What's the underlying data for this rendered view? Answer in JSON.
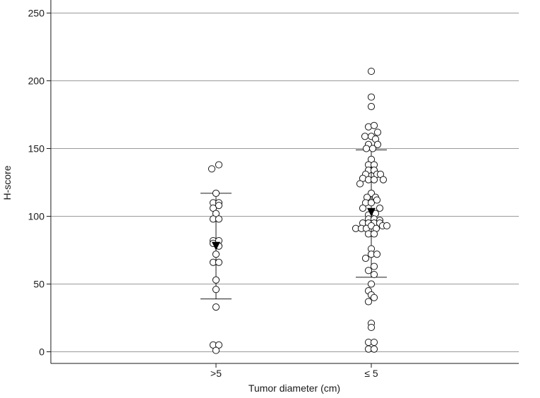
{
  "chart_data": {
    "type": "scatter",
    "title": "",
    "xlabel": "Tumor diameter (cm)",
    "ylabel": "H-score",
    "categories": [
      ">5",
      "≤ 5"
    ],
    "yticks": [
      0,
      50,
      100,
      150,
      200,
      250
    ],
    "ylim": [
      -10,
      250
    ],
    "grid": true,
    "legend": "none",
    "groups": [
      {
        "category": ">5",
        "mean": 78,
        "sd_upper": 117,
        "sd_lower": 39,
        "points": [
          [
            -0.06,
            135
          ],
          [
            0.04,
            138
          ],
          [
            0.0,
            117
          ],
          [
            -0.04,
            110
          ],
          [
            0.04,
            110
          ],
          [
            -0.04,
            106
          ],
          [
            0.04,
            108
          ],
          [
            0.0,
            102
          ],
          [
            -0.04,
            98
          ],
          [
            0.04,
            98
          ],
          [
            -0.04,
            82
          ],
          [
            0.04,
            82
          ],
          [
            -0.04,
            80
          ],
          [
            0.04,
            78
          ],
          [
            0.0,
            72
          ],
          [
            -0.04,
            66
          ],
          [
            0.04,
            66
          ],
          [
            0.0,
            53
          ],
          [
            0.0,
            46
          ],
          [
            0.0,
            33
          ],
          [
            -0.04,
            5
          ],
          [
            0.04,
            5
          ],
          [
            0.0,
            1
          ]
        ]
      },
      {
        "category": "≤ 5",
        "mean": 103,
        "sd_upper": 149,
        "sd_lower": 55,
        "points": [
          [
            0.0,
            207
          ],
          [
            0.0,
            188
          ],
          [
            0.0,
            181
          ],
          [
            -0.04,
            166
          ],
          [
            0.04,
            167
          ],
          [
            0.09,
            162
          ],
          [
            -0.09,
            159
          ],
          [
            0.0,
            159
          ],
          [
            0.06,
            157
          ],
          [
            -0.04,
            153
          ],
          [
            0.09,
            153
          ],
          [
            -0.07,
            150
          ],
          [
            0.02,
            150
          ],
          [
            0.0,
            142
          ],
          [
            -0.04,
            138
          ],
          [
            0.04,
            138
          ],
          [
            -0.04,
            134
          ],
          [
            0.04,
            134
          ],
          [
            -0.08,
            131
          ],
          [
            0.08,
            131
          ],
          [
            0.13,
            131
          ],
          [
            -0.12,
            128
          ],
          [
            0.17,
            127
          ],
          [
            -0.04,
            127
          ],
          [
            0.04,
            127
          ],
          [
            -0.16,
            124
          ],
          [
            0.0,
            117
          ],
          [
            -0.06,
            114
          ],
          [
            0.06,
            114
          ],
          [
            -0.08,
            110
          ],
          [
            0.0,
            110
          ],
          [
            0.08,
            112
          ],
          [
            -0.12,
            106
          ],
          [
            0.12,
            106
          ],
          [
            -0.04,
            101
          ],
          [
            0.06,
            102
          ],
          [
            -0.04,
            98
          ],
          [
            0.04,
            98
          ],
          [
            0.12,
            97
          ],
          [
            -0.12,
            95
          ],
          [
            -0.04,
            95
          ],
          [
            0.04,
            95
          ],
          [
            0.12,
            95
          ],
          [
            -0.22,
            91
          ],
          [
            -0.14,
            91
          ],
          [
            -0.07,
            91
          ],
          [
            0.0,
            93
          ],
          [
            0.07,
            91
          ],
          [
            0.16,
            93
          ],
          [
            0.22,
            93
          ],
          [
            -0.04,
            87
          ],
          [
            0.04,
            87
          ],
          [
            0.0,
            76
          ],
          [
            0.0,
            72
          ],
          [
            -0.08,
            69
          ],
          [
            0.08,
            72
          ],
          [
            0.04,
            63
          ],
          [
            -0.04,
            60
          ],
          [
            0.04,
            57
          ],
          [
            0.0,
            50
          ],
          [
            -0.04,
            45
          ],
          [
            0.0,
            42
          ],
          [
            0.04,
            40
          ],
          [
            -0.04,
            37
          ],
          [
            0.0,
            21
          ],
          [
            0.0,
            18
          ],
          [
            -0.04,
            7
          ],
          [
            0.04,
            7
          ],
          [
            -0.04,
            2
          ],
          [
            0.04,
            2
          ]
        ]
      }
    ]
  }
}
